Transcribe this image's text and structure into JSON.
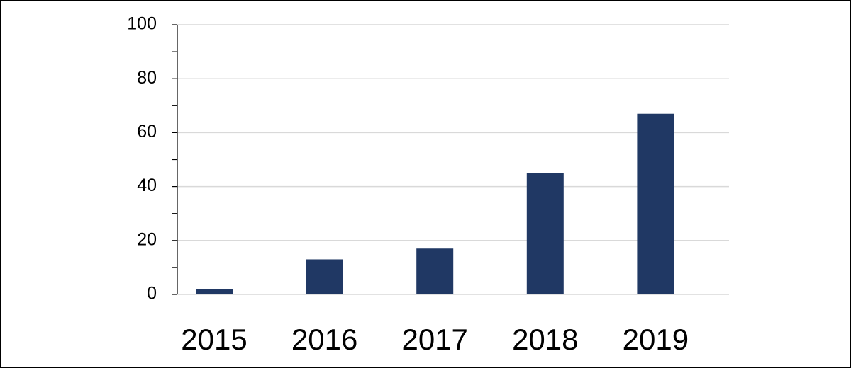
{
  "chart_data": {
    "type": "bar",
    "categories": [
      "2015",
      "2016",
      "2017",
      "2018",
      "2019"
    ],
    "values": [
      2,
      13,
      17,
      45,
      67
    ],
    "color": "#203864",
    "ylim": [
      0,
      100
    ],
    "yticks": [
      0,
      20,
      40,
      60,
      80,
      100
    ],
    "minor_yticks": [
      10,
      30,
      50,
      70,
      90
    ],
    "grid": true
  }
}
